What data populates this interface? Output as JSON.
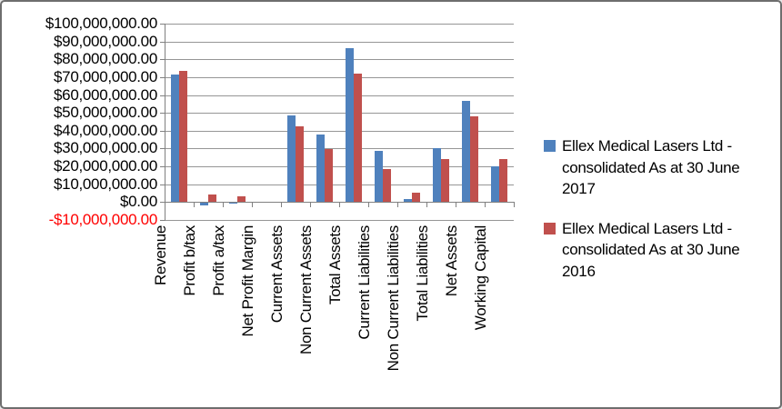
{
  "chart_data": {
    "type": "bar",
    "title": "",
    "xlabel": "",
    "ylabel": "",
    "grid": true,
    "legend_position": "right",
    "categories": [
      "Revenue",
      "Profit b/tax",
      "Profit a/tax",
      "Net Profit Margin",
      "Current Assets",
      "Non Current Assets",
      "Total Assets",
      "Current Liabilities",
      "Non Current Liabilities",
      "Total Liabilities",
      "Net Assets",
      "Working Capital"
    ],
    "series": [
      {
        "name": "Ellex Medical Lasers Ltd - consolidated As at 30 June 2017",
        "color": "#4F81BD",
        "values": [
          71500000,
          -1400000,
          -500000,
          0,
          48500000,
          38000000,
          86500000,
          28500000,
          1500000,
          30000000,
          56500000,
          20000000
        ]
      },
      {
        "name": "Ellex Medical Lasers Ltd - consolidated As at 30 June 2016",
        "color": "#C0504D",
        "values": [
          73500000,
          4300000,
          3200000,
          0,
          42500000,
          29500000,
          72000000,
          18500000,
          5500000,
          24000000,
          48000000,
          24000000
        ]
      }
    ],
    "y_axis": {
      "min": -10000000,
      "max": 100000000,
      "step": 10000000,
      "tick_format": "$#,##0.00",
      "tick_labels": [
        "$100,000,000.00",
        "$90,000,000.00",
        "$80,000,000.00",
        "$70,000,000.00",
        "$60,000,000.00",
        "$50,000,000.00",
        "$40,000,000.00",
        "$30,000,000.00",
        "$20,000,000.00",
        "$10,000,000.00",
        "$0.00",
        "-$10,000,000.00"
      ]
    },
    "colors": {
      "grid": "#969696",
      "axis": "#808080",
      "text": "#000000",
      "negative_tick": "#FF0000"
    }
  }
}
